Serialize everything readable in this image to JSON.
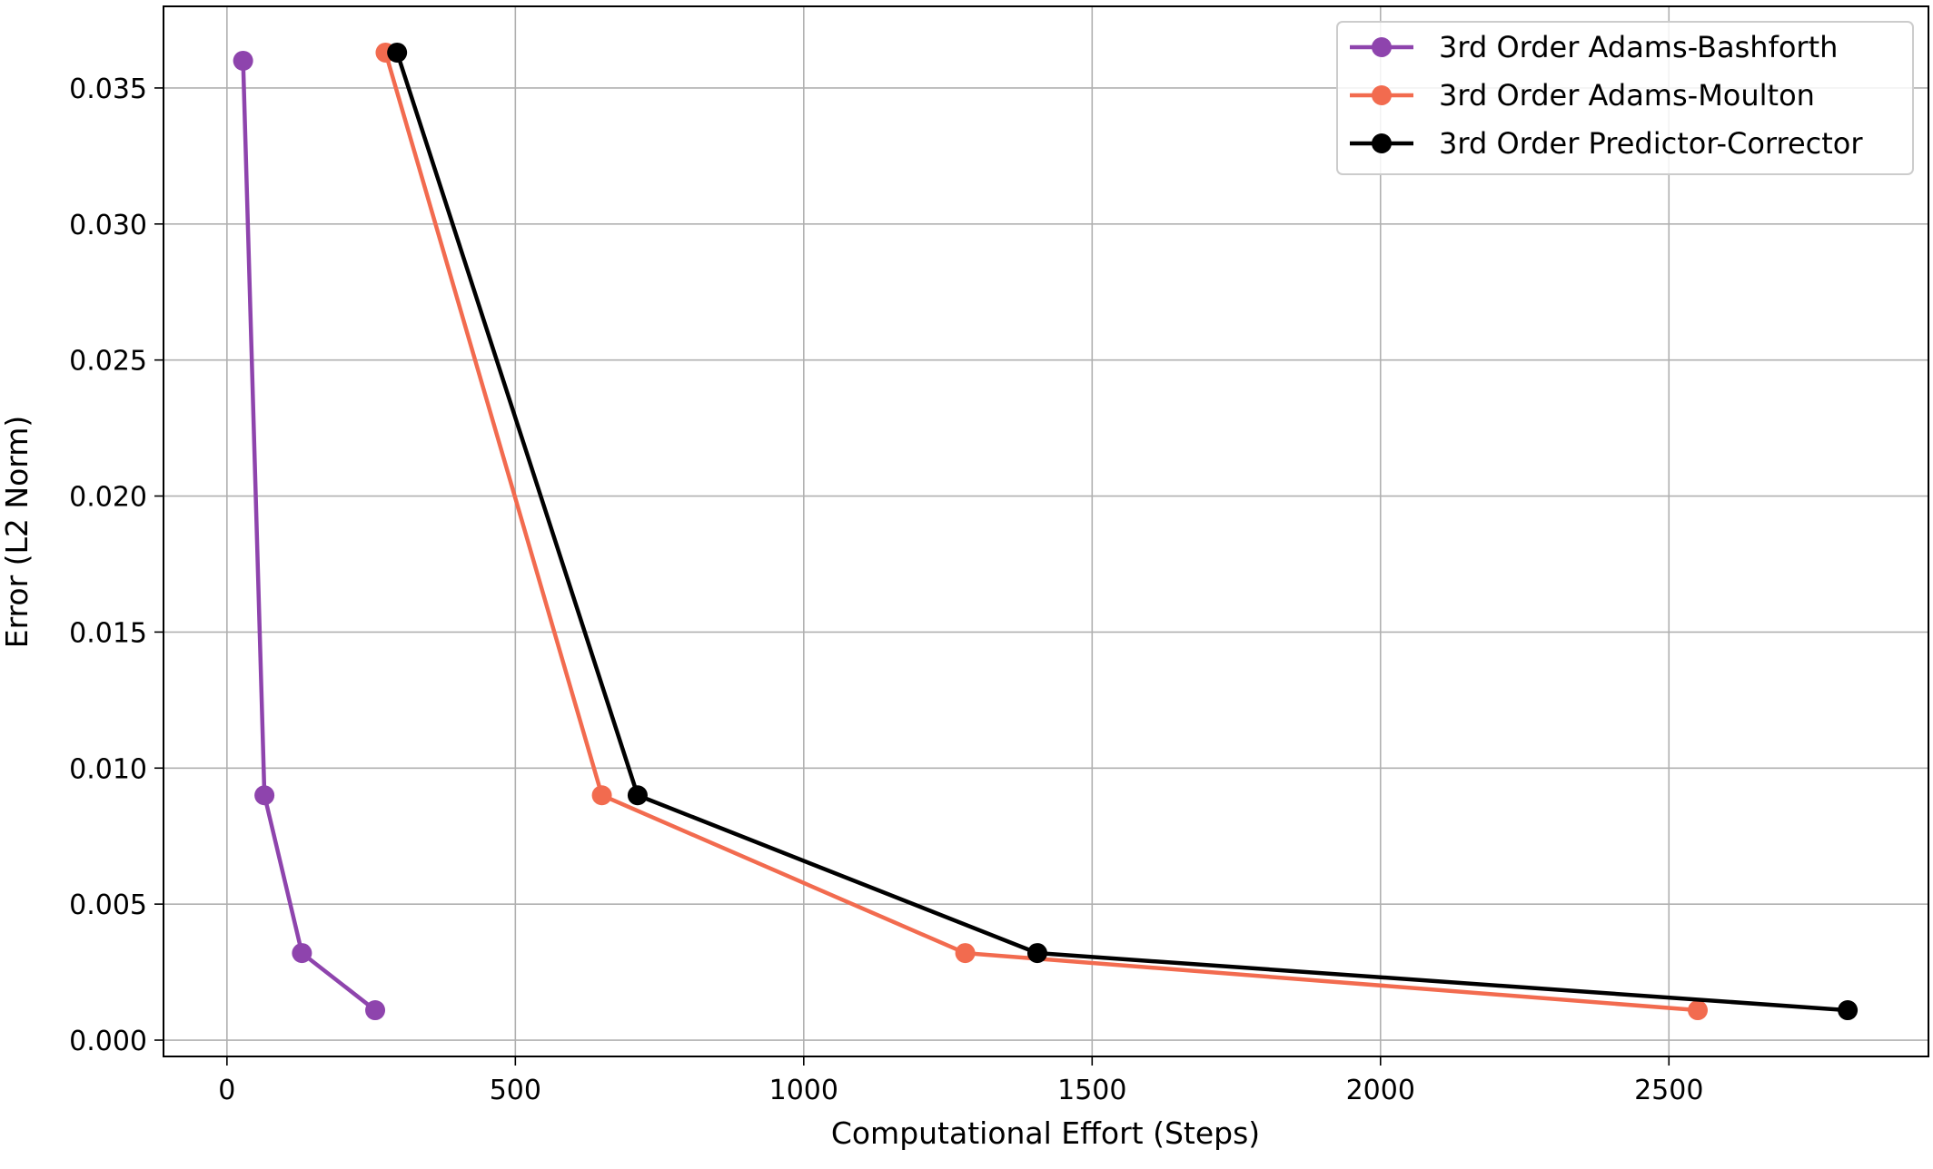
{
  "chart_data": {
    "type": "line",
    "title": "",
    "xlabel": "Computational Effort (Steps)",
    "ylabel": "Error (L2 Norm)",
    "xlim": [
      -110,
      2950
    ],
    "ylim": [
      -0.0006,
      0.038
    ],
    "xticks": [
      0,
      500,
      1000,
      1500,
      2000,
      2500
    ],
    "xtick_labels": [
      "0",
      "500",
      "1000",
      "1500",
      "2000",
      "2500"
    ],
    "yticks": [
      0.0,
      0.005,
      0.01,
      0.015,
      0.02,
      0.025,
      0.03,
      0.035
    ],
    "ytick_labels": [
      "0.000",
      "0.005",
      "0.010",
      "0.015",
      "0.020",
      "0.025",
      "0.030",
      "0.035"
    ],
    "grid": true,
    "legend_position": "top-right",
    "series": [
      {
        "name": "3rd Order Adams-Bashforth",
        "color": "#8e44ad",
        "marker": "circle",
        "x": [
          28,
          65,
          130,
          257
        ],
        "y": [
          0.036,
          0.009,
          0.0032,
          0.0011
        ]
      },
      {
        "name": "3rd Order Adams-Moulton",
        "color": "#f26b4f",
        "marker": "circle",
        "x": [
          275,
          650,
          1280,
          2550
        ],
        "y": [
          0.0363,
          0.009,
          0.0032,
          0.0011
        ]
      },
      {
        "name": "3rd Order Predictor-Corrector",
        "color": "#000000",
        "marker": "circle",
        "x": [
          295,
          712,
          1405,
          2810
        ],
        "y": [
          0.0363,
          0.009,
          0.0032,
          0.0011
        ]
      }
    ]
  }
}
